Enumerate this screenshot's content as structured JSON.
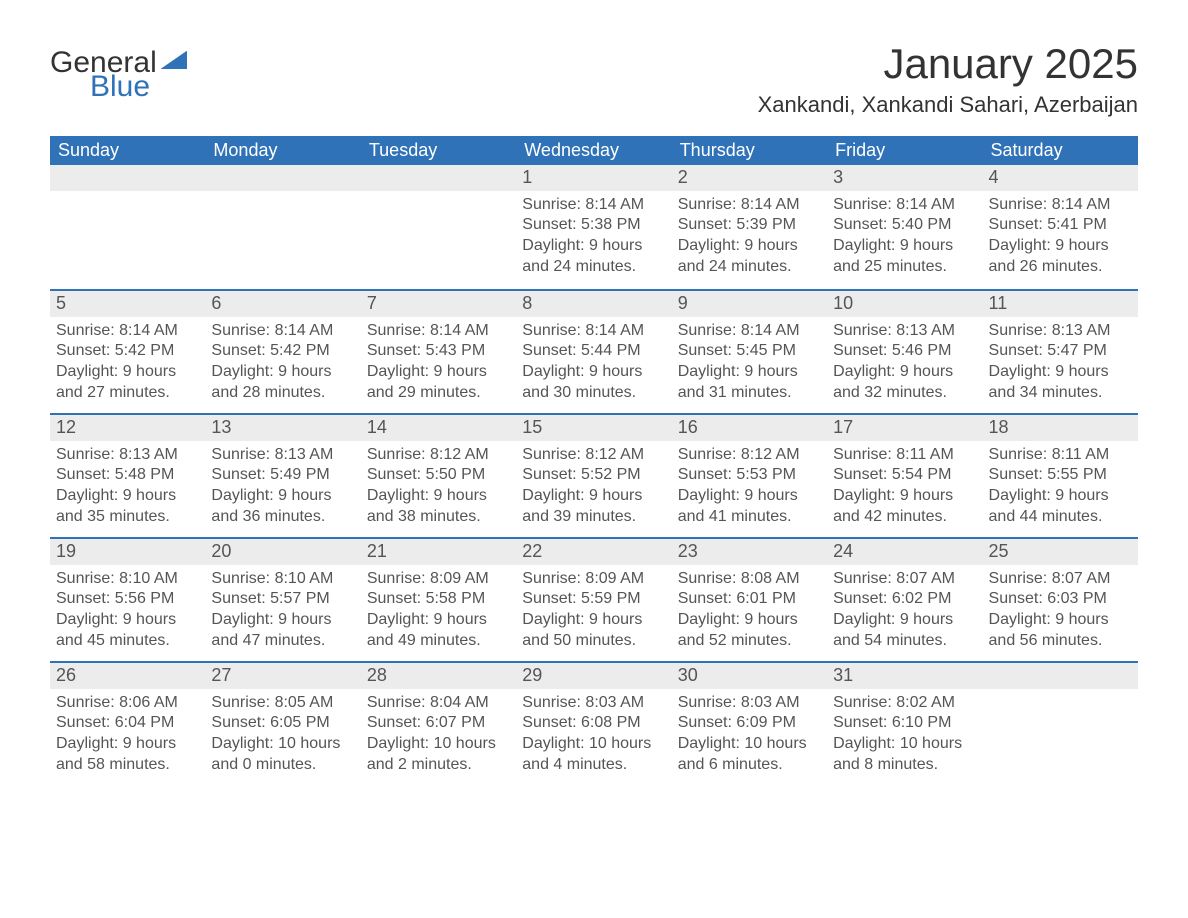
{
  "brand": {
    "word1": "General",
    "word2": "Blue"
  },
  "title": "January 2025",
  "location": "Xankandi, Xankandi Sahari, Azerbaijan",
  "colors": {
    "accent": "#2f72b8",
    "header_text": "#ffffff",
    "daynum_bg": "#ececec",
    "body_text": "#555555",
    "page_bg": "#ffffff"
  },
  "weekday_labels": [
    "Sunday",
    "Monday",
    "Tuesday",
    "Wednesday",
    "Thursday",
    "Friday",
    "Saturday"
  ],
  "labels": {
    "sunrise": "Sunrise:",
    "sunset": "Sunset:",
    "daylight": "Daylight:"
  },
  "start_weekday_index": 3,
  "days": [
    {
      "n": 1,
      "sunrise": "8:14 AM",
      "sunset": "5:38 PM",
      "daylight": "9 hours and 24 minutes."
    },
    {
      "n": 2,
      "sunrise": "8:14 AM",
      "sunset": "5:39 PM",
      "daylight": "9 hours and 24 minutes."
    },
    {
      "n": 3,
      "sunrise": "8:14 AM",
      "sunset": "5:40 PM",
      "daylight": "9 hours and 25 minutes."
    },
    {
      "n": 4,
      "sunrise": "8:14 AM",
      "sunset": "5:41 PM",
      "daylight": "9 hours and 26 minutes."
    },
    {
      "n": 5,
      "sunrise": "8:14 AM",
      "sunset": "5:42 PM",
      "daylight": "9 hours and 27 minutes."
    },
    {
      "n": 6,
      "sunrise": "8:14 AM",
      "sunset": "5:42 PM",
      "daylight": "9 hours and 28 minutes."
    },
    {
      "n": 7,
      "sunrise": "8:14 AM",
      "sunset": "5:43 PM",
      "daylight": "9 hours and 29 minutes."
    },
    {
      "n": 8,
      "sunrise": "8:14 AM",
      "sunset": "5:44 PM",
      "daylight": "9 hours and 30 minutes."
    },
    {
      "n": 9,
      "sunrise": "8:14 AM",
      "sunset": "5:45 PM",
      "daylight": "9 hours and 31 minutes."
    },
    {
      "n": 10,
      "sunrise": "8:13 AM",
      "sunset": "5:46 PM",
      "daylight": "9 hours and 32 minutes."
    },
    {
      "n": 11,
      "sunrise": "8:13 AM",
      "sunset": "5:47 PM",
      "daylight": "9 hours and 34 minutes."
    },
    {
      "n": 12,
      "sunrise": "8:13 AM",
      "sunset": "5:48 PM",
      "daylight": "9 hours and 35 minutes."
    },
    {
      "n": 13,
      "sunrise": "8:13 AM",
      "sunset": "5:49 PM",
      "daylight": "9 hours and 36 minutes."
    },
    {
      "n": 14,
      "sunrise": "8:12 AM",
      "sunset": "5:50 PM",
      "daylight": "9 hours and 38 minutes."
    },
    {
      "n": 15,
      "sunrise": "8:12 AM",
      "sunset": "5:52 PM",
      "daylight": "9 hours and 39 minutes."
    },
    {
      "n": 16,
      "sunrise": "8:12 AM",
      "sunset": "5:53 PM",
      "daylight": "9 hours and 41 minutes."
    },
    {
      "n": 17,
      "sunrise": "8:11 AM",
      "sunset": "5:54 PM",
      "daylight": "9 hours and 42 minutes."
    },
    {
      "n": 18,
      "sunrise": "8:11 AM",
      "sunset": "5:55 PM",
      "daylight": "9 hours and 44 minutes."
    },
    {
      "n": 19,
      "sunrise": "8:10 AM",
      "sunset": "5:56 PM",
      "daylight": "9 hours and 45 minutes."
    },
    {
      "n": 20,
      "sunrise": "8:10 AM",
      "sunset": "5:57 PM",
      "daylight": "9 hours and 47 minutes."
    },
    {
      "n": 21,
      "sunrise": "8:09 AM",
      "sunset": "5:58 PM",
      "daylight": "9 hours and 49 minutes."
    },
    {
      "n": 22,
      "sunrise": "8:09 AM",
      "sunset": "5:59 PM",
      "daylight": "9 hours and 50 minutes."
    },
    {
      "n": 23,
      "sunrise": "8:08 AM",
      "sunset": "6:01 PM",
      "daylight": "9 hours and 52 minutes."
    },
    {
      "n": 24,
      "sunrise": "8:07 AM",
      "sunset": "6:02 PM",
      "daylight": "9 hours and 54 minutes."
    },
    {
      "n": 25,
      "sunrise": "8:07 AM",
      "sunset": "6:03 PM",
      "daylight": "9 hours and 56 minutes."
    },
    {
      "n": 26,
      "sunrise": "8:06 AM",
      "sunset": "6:04 PM",
      "daylight": "9 hours and 58 minutes."
    },
    {
      "n": 27,
      "sunrise": "8:05 AM",
      "sunset": "6:05 PM",
      "daylight": "10 hours and 0 minutes."
    },
    {
      "n": 28,
      "sunrise": "8:04 AM",
      "sunset": "6:07 PM",
      "daylight": "10 hours and 2 minutes."
    },
    {
      "n": 29,
      "sunrise": "8:03 AM",
      "sunset": "6:08 PM",
      "daylight": "10 hours and 4 minutes."
    },
    {
      "n": 30,
      "sunrise": "8:03 AM",
      "sunset": "6:09 PM",
      "daylight": "10 hours and 6 minutes."
    },
    {
      "n": 31,
      "sunrise": "8:02 AM",
      "sunset": "6:10 PM",
      "daylight": "10 hours and 8 minutes."
    }
  ]
}
